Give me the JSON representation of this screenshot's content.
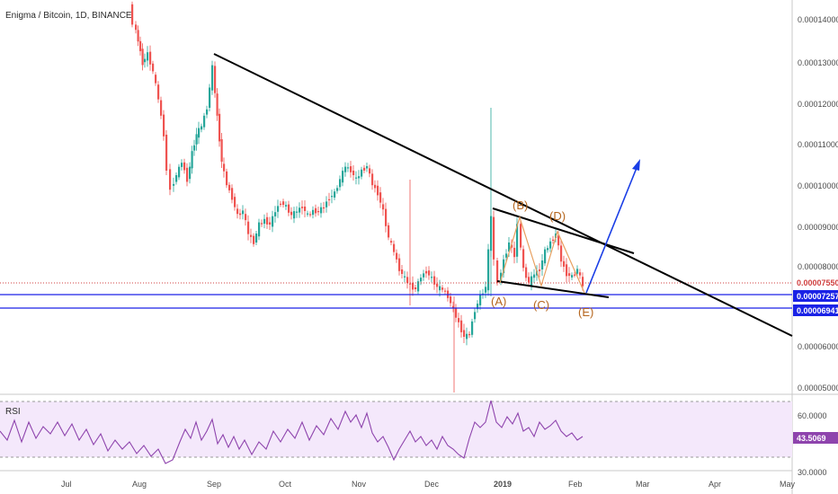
{
  "header": {
    "title": "Enigma / Bitcoin, 1D, BINANCE"
  },
  "rsi_label": "RSI",
  "colors": {
    "up": "#26a69a",
    "down": "#ef5350",
    "trend": "#000000",
    "support": "#1a22e6",
    "projection": "#1a3ee6",
    "wave": "#e8a060",
    "wave_label": "#b5651d",
    "rsi_line": "#8e44ad",
    "rsi_band": "#f3e6fb",
    "price_line": "#d04040"
  },
  "chart_data": [
    {
      "type": "candlestick",
      "title": "Enigma / Bitcoin, 1D, BINANCE",
      "x_ticks": [
        "Jul",
        "Aug",
        "Sep",
        "Oct",
        "Nov",
        "Dec",
        "2019",
        "Feb",
        "Mar",
        "Apr",
        "May"
      ],
      "y_ticks": [
        "0.00014000",
        "0.00013000",
        "0.00012000",
        "0.00011000",
        "0.00010000",
        "0.00009000",
        "0.00008000",
        "0.00006000",
        "0.00005000"
      ],
      "ylim": [
        4.8e-05,
        0.000145
      ],
      "current_price_tag": "0.00007550",
      "level_tags": [
        "0.00007257",
        "0.00006941"
      ],
      "levels": [
        7.257e-05,
        6.941e-05
      ],
      "current_price": 7.55e-05,
      "wave_labels": [
        "(A)",
        "(B)",
        "(C)",
        "(D)",
        "(E)"
      ]
    },
    {
      "type": "line",
      "title": "RSI",
      "y_ticks": [
        "60.0000",
        "30.0000"
      ],
      "value_tag": "43.5069",
      "ylim": [
        25,
        75
      ],
      "bands": [
        70,
        30
      ]
    }
  ]
}
